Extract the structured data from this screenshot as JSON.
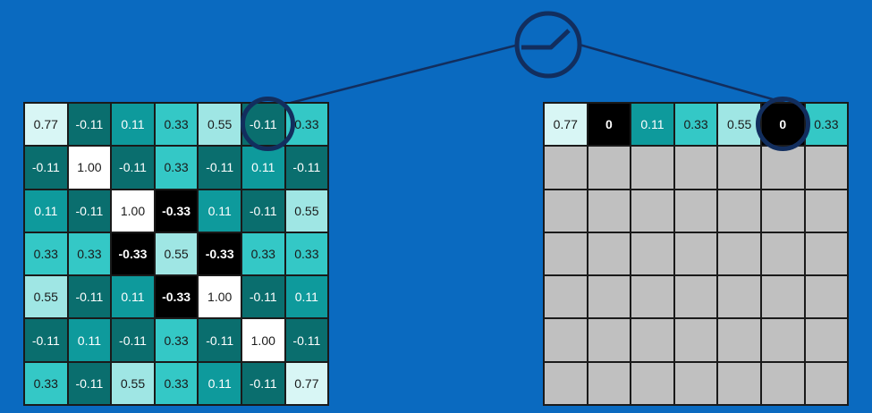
{
  "colors": {
    "background": "#0a6ac0",
    "ring": "#122e5e",
    "empty": "#c0c0c0"
  },
  "operator_icon": "relu-function-icon",
  "left_grid": [
    [
      "0.77",
      "-0.11",
      "0.11",
      "0.33",
      "0.55",
      "-0.11",
      "0.33"
    ],
    [
      "-0.11",
      "1.00",
      "-0.11",
      "0.33",
      "-0.11",
      "0.11",
      "-0.11"
    ],
    [
      "0.11",
      "-0.11",
      "1.00",
      "-0.33",
      "0.11",
      "-0.11",
      "0.55"
    ],
    [
      "0.33",
      "0.33",
      "-0.33",
      "0.55",
      "-0.33",
      "0.33",
      "0.33"
    ],
    [
      "0.55",
      "-0.11",
      "0.11",
      "-0.33",
      "1.00",
      "-0.11",
      "0.11"
    ],
    [
      "-0.11",
      "0.11",
      "-0.11",
      "0.33",
      "-0.11",
      "1.00",
      "-0.11"
    ],
    [
      "0.33",
      "-0.11",
      "0.55",
      "0.33",
      "0.11",
      "-0.11",
      "0.77"
    ]
  ],
  "right_grid_first_row": [
    "0.77",
    "0",
    "0.11",
    "0.33",
    "0.55",
    "0",
    "0.33"
  ],
  "highlight": {
    "row": 0,
    "col": 5
  }
}
